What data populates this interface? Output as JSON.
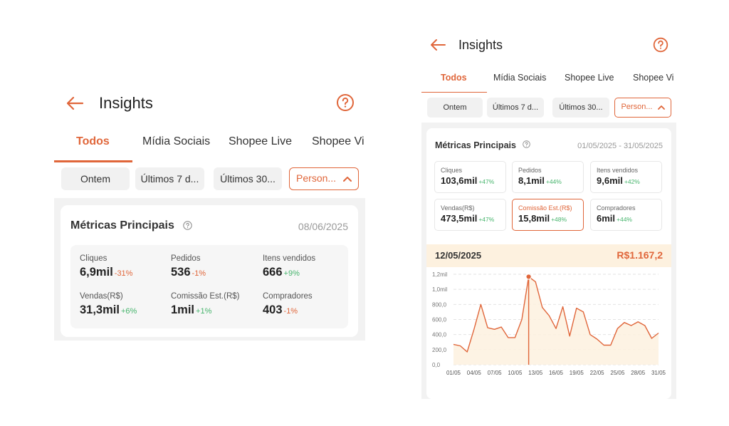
{
  "colors": {
    "accent": "#e0663a",
    "positive": "#46b46c",
    "band": "#fdf1df"
  },
  "left": {
    "header": {
      "title": "Insights",
      "back_icon": "arrow-left-icon",
      "help_icon": "question-circle-icon"
    },
    "tabs": [
      {
        "label": "Todos",
        "active": true
      },
      {
        "label": "Mídia Sociais"
      },
      {
        "label": "Shopee Live"
      },
      {
        "label": "Shopee Vi"
      }
    ],
    "filters": [
      {
        "label": "Ontem"
      },
      {
        "label": "Últimos 7 d..."
      },
      {
        "label": "Últimos 30..."
      },
      {
        "label": "Person...",
        "selected": true
      }
    ],
    "card": {
      "title": "Métricas Principais",
      "date": "08/06/2025",
      "metrics": [
        {
          "label": "Cliques",
          "value": "6,9mil",
          "delta": "-31%"
        },
        {
          "label": "Pedidos",
          "value": "536",
          "delta": "-1%"
        },
        {
          "label": "Itens vendidos",
          "value": "666",
          "delta": "+9%"
        },
        {
          "label": "Vendas(R$)",
          "value": "31,3mil",
          "delta": "+6%"
        },
        {
          "label": "Comissão Est.(R$)",
          "value": "1mil",
          "delta": "+1%"
        },
        {
          "label": "Compradores",
          "value": "403",
          "delta": "-1%"
        }
      ]
    }
  },
  "right": {
    "header": {
      "title": "Insights",
      "back_icon": "arrow-left-icon",
      "help_icon": "question-circle-icon"
    },
    "tabs": [
      {
        "label": "Todos",
        "active": true
      },
      {
        "label": "Mídia Sociais"
      },
      {
        "label": "Shopee Live"
      },
      {
        "label": "Shopee Vi"
      }
    ],
    "filters": [
      {
        "label": "Ontem"
      },
      {
        "label": "Últimos 7 d..."
      },
      {
        "label": "Últimos 30..."
      },
      {
        "label": "Person...",
        "selected": true
      }
    ],
    "card": {
      "title": "Métricas Principais",
      "date_range": "01/05/2025 - 31/05/2025",
      "metrics": [
        {
          "label": "Cliques",
          "value": "103,6mil",
          "delta": "+47%"
        },
        {
          "label": "Pedidos",
          "value": "8,1mil",
          "delta": "+44%"
        },
        {
          "label": "Itens vendidos",
          "value": "9,6mil",
          "delta": "+42%"
        },
        {
          "label": "Vendas(R$)",
          "value": "473,5mil",
          "delta": "+47%"
        },
        {
          "label": "Comissão Est.(R$)",
          "value": "15,8mil",
          "delta": "+48%",
          "selected": true
        },
        {
          "label": "Compradores",
          "value": "6mil",
          "delta": "+44%"
        }
      ],
      "highlight": {
        "date": "12/05/2025",
        "value": "R$1.167,2"
      }
    }
  },
  "chart_data": {
    "type": "area",
    "xlabel": "",
    "ylabel": "",
    "ylim": [
      0,
      1200
    ],
    "y_ticks": [
      "0,0",
      "200,0",
      "400,0",
      "600,0",
      "800,0",
      "1,0mil",
      "1,2mil"
    ],
    "x_ticks": [
      "01/05",
      "04/05",
      "07/05",
      "10/05",
      "13/05",
      "16/05",
      "19/05",
      "22/05",
      "25/05",
      "28/05",
      "31/05"
    ],
    "grid": true,
    "selected_index": 11,
    "x": [
      "01/05",
      "02/05",
      "03/05",
      "04/05",
      "05/05",
      "06/05",
      "07/05",
      "08/05",
      "09/05",
      "10/05",
      "11/05",
      "12/05",
      "13/05",
      "14/05",
      "15/05",
      "16/05",
      "17/05",
      "18/05",
      "19/05",
      "20/05",
      "21/05",
      "22/05",
      "23/05",
      "24/05",
      "25/05",
      "26/05",
      "27/05",
      "28/05",
      "29/05",
      "30/05",
      "31/05"
    ],
    "values": [
      270,
      250,
      170,
      470,
      800,
      490,
      470,
      500,
      360,
      360,
      600,
      1167,
      1100,
      760,
      650,
      480,
      770,
      380,
      750,
      700,
      400,
      340,
      260,
      260,
      480,
      560,
      520,
      570,
      520,
      350,
      420
    ]
  }
}
